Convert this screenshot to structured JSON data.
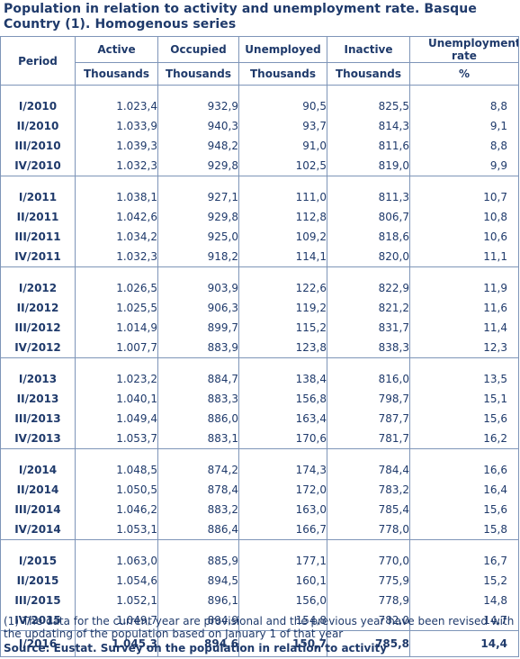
{
  "title": "Population in relation to activity and unemployment rate. Basque Country (1). Homogenous series",
  "headers": {
    "period": "Period",
    "active": "Active",
    "occupied": "Occupied",
    "unemployed": "Unemployed",
    "inactive": "Inactive",
    "rate": "Unemployment rate",
    "unit_thousands": "Thousands",
    "unit_percent": "%"
  },
  "groups": [
    {
      "rows": [
        {
          "period": "I/2010",
          "active": "1.023,4",
          "occupied": "932,9",
          "unemployed": "90,5",
          "inactive": "825,5",
          "rate": "8,8"
        },
        {
          "period": "II/2010",
          "active": "1.033,9",
          "occupied": "940,3",
          "unemployed": "93,7",
          "inactive": "814,3",
          "rate": "9,1"
        },
        {
          "period": "III/2010",
          "active": "1.039,3",
          "occupied": "948,2",
          "unemployed": "91,0",
          "inactive": "811,6",
          "rate": "8,8"
        },
        {
          "period": "IV/2010",
          "active": "1.032,3",
          "occupied": "929,8",
          "unemployed": "102,5",
          "inactive": "819,0",
          "rate": "9,9"
        }
      ]
    },
    {
      "rows": [
        {
          "period": "I/2011",
          "active": "1.038,1",
          "occupied": "927,1",
          "unemployed": "111,0",
          "inactive": "811,3",
          "rate": "10,7"
        },
        {
          "period": "II/2011",
          "active": "1.042,6",
          "occupied": "929,8",
          "unemployed": "112,8",
          "inactive": "806,7",
          "rate": "10,8"
        },
        {
          "period": "III/2011",
          "active": "1.034,2",
          "occupied": "925,0",
          "unemployed": "109,2",
          "inactive": "818,6",
          "rate": "10,6"
        },
        {
          "period": "IV/2011",
          "active": "1.032,3",
          "occupied": "918,2",
          "unemployed": "114,1",
          "inactive": "820,0",
          "rate": "11,1"
        }
      ]
    },
    {
      "rows": [
        {
          "period": "I/2012",
          "active": "1.026,5",
          "occupied": "903,9",
          "unemployed": "122,6",
          "inactive": "822,9",
          "rate": "11,9"
        },
        {
          "period": "II/2012",
          "active": "1.025,5",
          "occupied": "906,3",
          "unemployed": "119,2",
          "inactive": "821,2",
          "rate": "11,6"
        },
        {
          "period": "III/2012",
          "active": "1.014,9",
          "occupied": "899,7",
          "unemployed": "115,2",
          "inactive": "831,7",
          "rate": "11,4"
        },
        {
          "period": "IV/2012",
          "active": "1.007,7",
          "occupied": "883,9",
          "unemployed": "123,8",
          "inactive": "838,3",
          "rate": "12,3"
        }
      ]
    },
    {
      "rows": [
        {
          "period": "I/2013",
          "active": "1.023,2",
          "occupied": "884,7",
          "unemployed": "138,4",
          "inactive": "816,0",
          "rate": "13,5"
        },
        {
          "period": "II/2013",
          "active": "1.040,1",
          "occupied": "883,3",
          "unemployed": "156,8",
          "inactive": "798,7",
          "rate": "15,1"
        },
        {
          "period": "III/2013",
          "active": "1.049,4",
          "occupied": "886,0",
          "unemployed": "163,4",
          "inactive": "787,7",
          "rate": "15,6"
        },
        {
          "period": "IV/2013",
          "active": "1.053,7",
          "occupied": "883,1",
          "unemployed": "170,6",
          "inactive": "781,7",
          "rate": "16,2"
        }
      ]
    },
    {
      "rows": [
        {
          "period": "I/2014",
          "active": "1.048,5",
          "occupied": "874,2",
          "unemployed": "174,3",
          "inactive": "784,4",
          "rate": "16,6"
        },
        {
          "period": "II/2014",
          "active": "1.050,5",
          "occupied": "878,4",
          "unemployed": "172,0",
          "inactive": "783,2",
          "rate": "16,4"
        },
        {
          "period": "III/2014",
          "active": "1.046,2",
          "occupied": "883,2",
          "unemployed": "163,0",
          "inactive": "785,4",
          "rate": "15,6"
        },
        {
          "period": "IV/2014",
          "active": "1.053,1",
          "occupied": "886,4",
          "unemployed": "166,7",
          "inactive": "778,0",
          "rate": "15,8"
        }
      ]
    },
    {
      "rows": [
        {
          "period": "I/2015",
          "active": "1.063,0",
          "occupied": "885,9",
          "unemployed": "177,1",
          "inactive": "770,0",
          "rate": "16,7"
        },
        {
          "period": "II/2015",
          "active": "1.054,6",
          "occupied": "894,5",
          "unemployed": "160,1",
          "inactive": "775,9",
          "rate": "15,2"
        },
        {
          "period": "III/2015",
          "active": "1.052,1",
          "occupied": "896,1",
          "unemployed": "156,0",
          "inactive": "778,9",
          "rate": "14,8"
        },
        {
          "period": "IV/2015",
          "active": "1.049,7",
          "occupied": "894,9",
          "unemployed": "154,8",
          "inactive": "782,0",
          "rate": "14,7"
        }
      ]
    }
  ],
  "total": {
    "period": "I/2016",
    "active": "1.045,3",
    "occupied": "894,6",
    "unemployed": "150,7",
    "inactive": "785,8",
    "rate": "14,4"
  },
  "note": "(1) The data for the current year are provisional and the previous year have been revised with the updating of the population based on January 1 of that year",
  "source": "Source: Eustat. Survey on the population in relation to activity",
  "colors": {
    "text": "#1f3a6b",
    "border": "#7e95b8"
  }
}
